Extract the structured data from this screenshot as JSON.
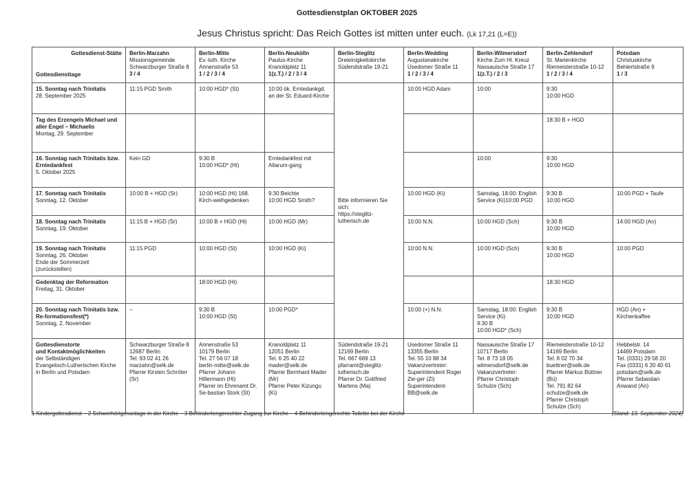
{
  "title": "Gottesdienstplan OKTOBER 2025",
  "subtitle": {
    "text": "Jesus Christus spricht: Das Reich Gottes ist mitten unter euch.",
    "ref": "(Lk 17,21 (L=E))"
  },
  "corner": {
    "top": "Gottesdienst-Stätte",
    "bottom": "Gottesdiensttage"
  },
  "columns": [
    {
      "name": "Berlin-Marzahn",
      "info": "Missionsgemeinde\nSchwarzburger Straße 8",
      "features": "3 / 4"
    },
    {
      "name": "Berlin-Mitte",
      "info": "Ev.-luth. Kirche\nAnnenstraße 53",
      "features": "1 / 2 / 3 / 4"
    },
    {
      "name": "Berlin-Neukölln",
      "info": "Paulus-Kirche\nKranoldplatz 11",
      "features": "1(z.T.) / 2 / 3 / 4"
    },
    {
      "name": "Berlin-Steglitz",
      "info": "Dreieinigkeitskirche\nSüdendstraße 19-21",
      "features": ""
    },
    {
      "name": "Berlin-Wedding",
      "info": "Augustanakirche\nUsedomer Straße 11",
      "features": "1 / 2 / 3 / 4"
    },
    {
      "name": "Berlin-Wilmersdorf",
      "info": "Kirche Zum Hl. Kreuz\nNassauische Straße 17",
      "features": "1(z.T.) / 2 / 3"
    },
    {
      "name": "Berlin-Zehlendorf",
      "info": "St. Marienkirche\nRiemeisterstraße 10-12",
      "features": "1 / 2 / 3 / 4"
    },
    {
      "name": "Potsdam",
      "info": "Christuskirche\nBehlertstraße 9",
      "features": "1 / 3"
    }
  ],
  "steglitz_note": "Bitte informieren Sie sich:\nhttps://steglitz-lutherisch.de",
  "rows": [
    {
      "title": "15. Sonntag nach Trinitatis",
      "date": "28. September 2025",
      "cells": [
        "11:15 PGD Smith",
        "10:00 HGD* (St)",
        "10:00 ök. Erntedankgd. an der St. Eduard-Kirche",
        "10:00 HGD Adam",
        "10:00",
        " 9:30\n10:00 HGD",
        ""
      ]
    },
    {
      "title": "Tag des Erzengels Michael und aller Engel – Michaelis",
      "date": "Montag, 29. September",
      "cells": [
        "",
        "",
        "",
        "",
        "",
        "18:30 B + HGD",
        ""
      ]
    },
    {
      "title": "16. Sonntag nach Trinitatis bzw. Erntedankfest",
      "date": "5. Oktober 2025",
      "cells": [
        "Kein GD",
        " 9:30 B\n10:00 HGD* (Hi)",
        "Erntedankfest mit Altarum-gang",
        "",
        "10:00",
        " 9:30\n10:00 HGD",
        ""
      ]
    },
    {
      "title": "17. Sonntag nach Trinitatis",
      "date": "Sonntag, 12. Oktober",
      "cells": [
        "10:00 B + HGD (Sr)",
        "10:00 HGD (Hi) 168. Kirch-weihgedenken",
        " 9:30 Beichte\n10:00 HGD Smith?",
        "10:00 HGD (Ki)",
        "Samstag, 18:00: English Service (Ki)10:00 PGD",
        " 9:30 B\n10:00 HGD",
        "10:00 PGD + Taufe"
      ]
    },
    {
      "title": "18. Sonntag nach Trinitatis",
      "date": "Sonntag, 19. Oktober",
      "cells": [
        "11:15 B + HGD (Sr)",
        "10:00 B + HGD (Hi)",
        "10:00 HGD (Mr)",
        "10:00 N.N.",
        "10:00 HGD (Sch)",
        " 9:30 B\n10:00 HGD",
        "14:00 HGD (An)"
      ]
    },
    {
      "title": "19. Sonntag nach Trinitatis",
      "date": "Sonntag, 26. Oktober\nEnde der Sommerzeit (zurückstellen)",
      "cells": [
        "11:15 PGD",
        "10:00 HGD (St)",
        "10:00 HGD (Ki)",
        "10:00 N.N.",
        "10:00 HGD (Sch)",
        " 9:30 B\n10:00 HGD",
        "10:00 PGD"
      ]
    },
    {
      "title": "Gedenktag der Reformation",
      "date": "Freitag, 31. Oktober",
      "cells": [
        "",
        "18:00 HGD (Hi)",
        "",
        "",
        "",
        "18:30 HGD",
        ""
      ]
    },
    {
      "title": "20. Sonntag nach Trinitatis bzw. Re-formationsfest(*)",
      "date": "Sonntag, 2. November",
      "cells": [
        "–",
        " 9:30 B\n10:00 HGD (St)",
        "10:00 PGD*",
        "10:00 (+) N.N.",
        "Samstag, 18:00: English Service (Ki)\n 9:30 B\n10:00 HGD* (Sch)",
        " 9:30 B\n10:00 HGD",
        "HGD (An) + Kirchenkaffee"
      ]
    }
  ],
  "contacts": {
    "title": "Gottesdienstorte\nund Kontaktmöglichkeiten",
    "subtitle": "der Selbständigen\nEvangelisch-Lutherischen Kirche\nin Berlin und Potsdam",
    "cells": [
      "Schwarzburger Straße 8\n12687 Berlin\nTel. 93 02 41 26\nmarzahn@selk.de\nPfarrer Kirsten Schröter (Sr)",
      "Annenstraße 53\n10179 Berlin\nTel. 27 56 07 18\nberlin-mitte@selk.de\nPfarrer Johann Hillermann (Hi)\nPfarrer im Ehrenamt Dr. Se-bastian Stork (St)",
      "Kranoldplatz 11\n12051 Berlin\nTel. 6 25 40 22\nmader@selk.de\nPfarrer Bernhard Mader (Mr)\nPfarrer Peter Kizungu (Ki)",
      "Südendstraße 19-21\n12169 Berlin\nTel. 667 669 13\npfarramt@steglitz-lutherisch.de\nPfarrer Dr. Gottfried Martens (Ma)",
      "Usedomer Straße 11\n13355 Berlin\nTel. 55 10 88 34\nVakanzvertreter:\nSuperintendent Roger Zie-ger (Zi)\nSuperintendent-BB@selk.de",
      "Nassauische Straße 17\n10717 Berlin\nTel. 8 73 18 05\nwilmersdorf@selk.de\nVakanzvertreter:\nPfarrer Christoph Schulze (Sch)",
      "Riemeisterstraße 10-12\n14169 Berlin\nTel. 8 02 70 34\nbuettner@selk.de\nPfarrer Markus Büttner (Bü)\nTel. 791 82 64\nschulze@selk.de\nPfarrer Christoph Schulze (Sch)",
      "Hebbelstr. 14\n14469 Potsdam\nTel. (0331) 29 58 20\nFax (0331) 6 20 40 61\npotsdam@selk.de\nPfarrer Sebastian Anwand (An)"
    ]
  },
  "footnote": "1 Kindergottesdienst  –  2 Schwerhörigenanlage in der Kirche  –  3 Behindertengerechter Zugang zur Kirche  –  4 Behindertengerechte Toilette bei der Kirche",
  "stand": "(Stand: 13. September 2024)"
}
